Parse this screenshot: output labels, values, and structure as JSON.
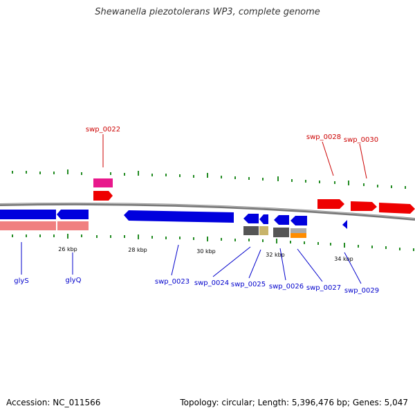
{
  "title": "Shewanella piezotolerans WP3, complete genome",
  "footer": {
    "accession": "Accession: NC_011566",
    "summary": "Topology: circular; Length: 5,396,476 bp; Genes: 5,047"
  },
  "colors": {
    "forward_gene": "#ee0000",
    "reverse_gene": "#0000dd",
    "rna_gene": "#ff3399",
    "pseudo": "#f08080",
    "tick": "#228b22",
    "backbone": "#888888",
    "label_top": "#cc0000",
    "label_bottom": "#0000cc"
  },
  "scale_labels": [
    "26 kbp",
    "28 kbp",
    "30 kbp",
    "32 kbp",
    "34 kbp"
  ],
  "top_labels": [
    "swp_0022",
    "swp_0028",
    "swp_0030"
  ],
  "bottom_labels": [
    "glyS",
    "glyQ",
    "swp_0023",
    "swp_0024",
    "swp_0025",
    "swp_0026",
    "swp_0027",
    "swp_0029"
  ]
}
